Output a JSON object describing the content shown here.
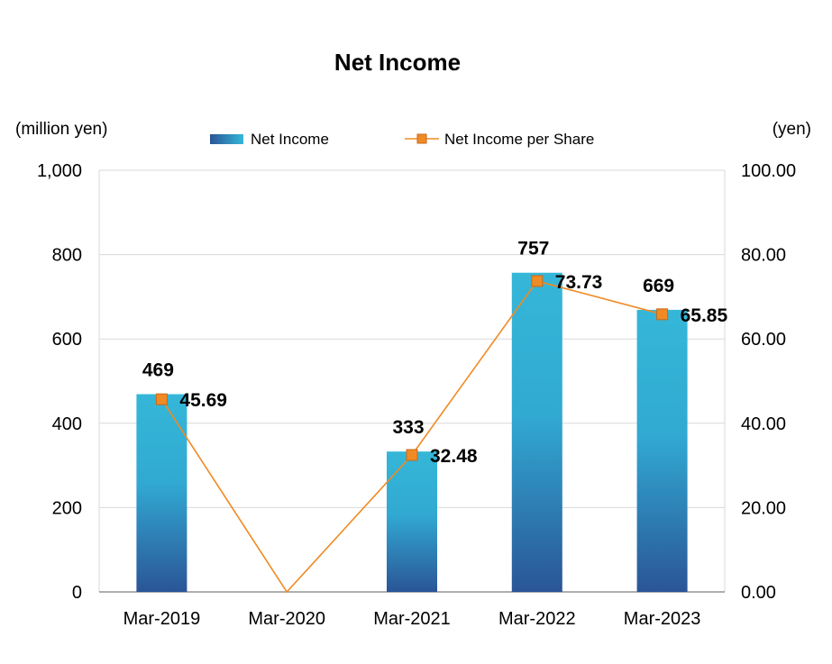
{
  "chart_data": {
    "type": "bar",
    "title": "Net Income",
    "categories": [
      "Mar-2019",
      "Mar-2020",
      "Mar-2021",
      "Mar-2022",
      "Mar-2023"
    ],
    "series": [
      {
        "name": "Net Income",
        "type": "bar",
        "axis": "left",
        "values": [
          469,
          null,
          333,
          757,
          669
        ],
        "labels": [
          "469",
          "",
          "333",
          "757",
          "669"
        ]
      },
      {
        "name": "Net Income per Share",
        "type": "line",
        "axis": "right",
        "values": [
          45.69,
          0,
          32.48,
          73.73,
          65.85
        ],
        "labels": [
          "45.69",
          "",
          "32.48",
          "73.73",
          "65.85"
        ]
      }
    ],
    "y_left": {
      "unit_label": "(million yen)",
      "range": [
        0,
        1000
      ],
      "ticks": [
        "0",
        "200",
        "400",
        "600",
        "800",
        "1,000"
      ]
    },
    "y_right": {
      "unit_label": "(yen)",
      "range": [
        0,
        100
      ],
      "ticks": [
        "0.00",
        "20.00",
        "40.00",
        "60.00",
        "80.00",
        "100.00"
      ]
    },
    "grid": true,
    "legend_position": "top",
    "colors": {
      "bar_top": "#35b7d8",
      "bar_bottom": "#2a5597",
      "line": "#f08a24",
      "marker_fill": "#f08a24",
      "marker_edge": "#c8691a",
      "grid": "#d9d9d9",
      "axis": "#7f7f7f"
    }
  }
}
